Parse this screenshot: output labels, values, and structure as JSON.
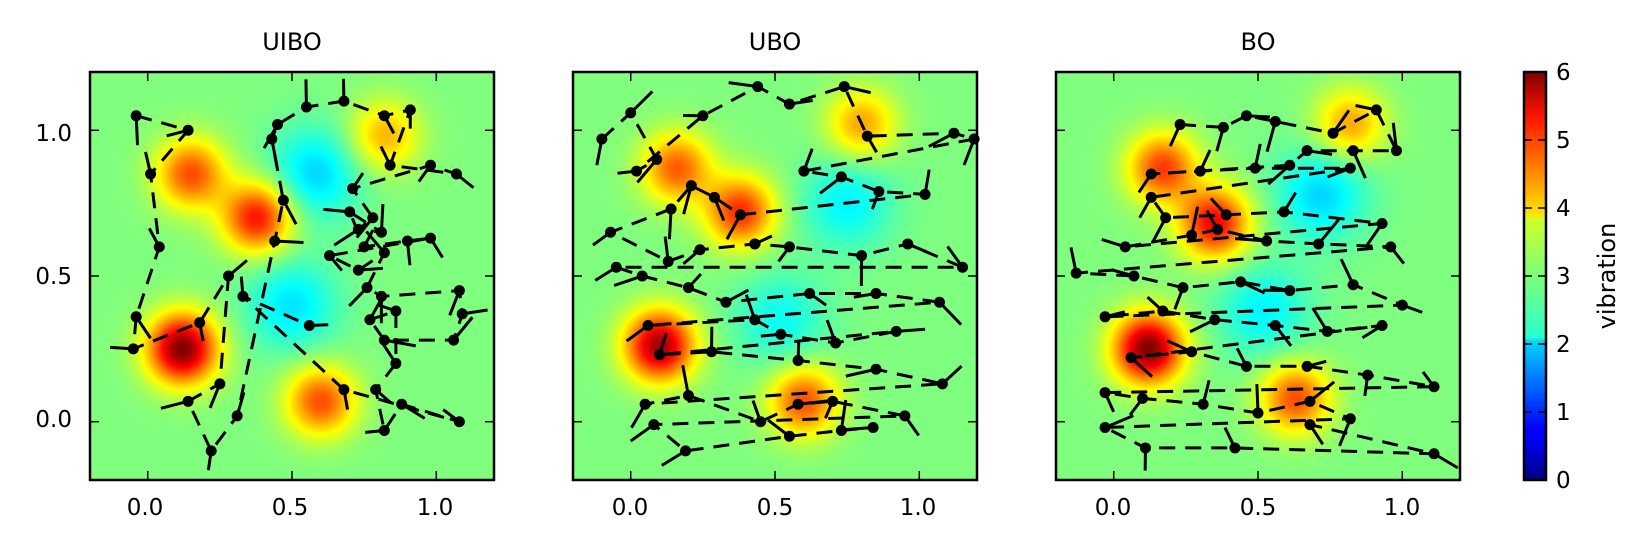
{
  "chart_data": [
    {
      "type": "heatmap",
      "title": "UIBO",
      "xlim": [
        -0.2,
        1.2
      ],
      "ylim": [
        -0.2,
        1.2
      ],
      "xticks": [
        "0.0",
        "0.5",
        "1.0"
      ],
      "yticks": [
        "0.0",
        "0.5",
        "1.0"
      ],
      "background_field": "vibration",
      "peaks": [
        {
          "x": 0.12,
          "y": 0.25,
          "value": 6.0
        },
        {
          "x": 0.38,
          "y": 0.7,
          "value": 5.2
        },
        {
          "x": 0.15,
          "y": 0.85,
          "value": 4.8
        },
        {
          "x": 0.6,
          "y": 0.07,
          "value": 4.8
        },
        {
          "x": 0.82,
          "y": 0.98,
          "value": 4.2
        }
      ],
      "troughs": [
        {
          "x": 0.58,
          "y": 0.85,
          "value": 2.0
        },
        {
          "x": 0.5,
          "y": 0.4,
          "value": 2.1
        }
      ],
      "sample_points": [
        [
          -0.04,
          1.05
        ],
        [
          0.14,
          1.0
        ],
        [
          0.01,
          0.85
        ],
        [
          0.04,
          0.6
        ],
        [
          -0.04,
          0.36
        ],
        [
          -0.05,
          0.25
        ],
        [
          0.18,
          0.34
        ],
        [
          0.28,
          0.5
        ],
        [
          0.25,
          0.13
        ],
        [
          0.14,
          0.07
        ],
        [
          0.22,
          -0.1
        ],
        [
          0.31,
          0.02
        ],
        [
          0.44,
          0.62
        ],
        [
          0.47,
          0.76
        ],
        [
          0.43,
          0.97
        ],
        [
          0.45,
          1.02
        ],
        [
          0.55,
          1.08
        ],
        [
          0.68,
          1.1
        ],
        [
          0.82,
          1.05
        ],
        [
          0.91,
          1.07
        ],
        [
          0.84,
          0.88
        ],
        [
          1.07,
          0.85
        ],
        [
          0.98,
          0.88
        ],
        [
          0.71,
          0.8
        ],
        [
          0.78,
          0.7
        ],
        [
          0.73,
          0.66
        ],
        [
          0.81,
          0.65
        ],
        [
          0.7,
          0.72
        ],
        [
          0.75,
          0.6
        ],
        [
          0.9,
          0.62
        ],
        [
          0.98,
          0.63
        ],
        [
          0.63,
          0.57
        ],
        [
          0.73,
          0.52
        ],
        [
          0.82,
          0.58
        ],
        [
          0.76,
          0.46
        ],
        [
          0.81,
          0.43
        ],
        [
          1.08,
          0.45
        ],
        [
          1.09,
          0.37
        ],
        [
          1.06,
          0.28
        ],
        [
          0.82,
          0.28
        ],
        [
          0.77,
          0.35
        ],
        [
          0.86,
          0.38
        ],
        [
          0.86,
          0.2
        ],
        [
          0.79,
          0.11
        ],
        [
          0.82,
          -0.03
        ],
        [
          0.88,
          0.06
        ],
        [
          1.08,
          0.0
        ],
        [
          0.68,
          0.11
        ],
        [
          0.33,
          0.43
        ],
        [
          0.56,
          0.33
        ]
      ]
    },
    {
      "type": "heatmap",
      "title": "UBO",
      "xlim": [
        -0.2,
        1.2
      ],
      "ylim": [
        -0.2,
        1.2
      ],
      "xticks": [
        "0.0",
        "0.5",
        "1.0"
      ],
      "yticks": [],
      "background_field": "vibration",
      "peaks": [
        {
          "x": 0.1,
          "y": 0.26,
          "value": 5.8
        },
        {
          "x": 0.38,
          "y": 0.72,
          "value": 5.0
        },
        {
          "x": 0.16,
          "y": 0.87,
          "value": 4.7
        },
        {
          "x": 0.6,
          "y": 0.07,
          "value": 4.8
        },
        {
          "x": 0.8,
          "y": 1.02,
          "value": 4.3
        }
      ],
      "troughs": [
        {
          "x": 0.75,
          "y": 0.75,
          "value": 2.2
        },
        {
          "x": 0.52,
          "y": 0.35,
          "value": 2.3
        }
      ],
      "sample_points": [
        [
          -0.1,
          0.97
        ],
        [
          0.0,
          1.06
        ],
        [
          0.09,
          0.9
        ],
        [
          0.02,
          0.86
        ],
        [
          0.25,
          1.05
        ],
        [
          0.44,
          1.15
        ],
        [
          0.55,
          1.09
        ],
        [
          0.74,
          1.15
        ],
        [
          0.82,
          0.98
        ],
        [
          1.12,
          0.99
        ],
        [
          1.19,
          0.97
        ],
        [
          0.6,
          0.86
        ],
        [
          0.73,
          0.84
        ],
        [
          0.86,
          0.79
        ],
        [
          1.02,
          0.78
        ],
        [
          0.38,
          0.71
        ],
        [
          0.29,
          0.77
        ],
        [
          0.21,
          0.81
        ],
        [
          0.14,
          0.73
        ],
        [
          -0.07,
          0.65
        ],
        [
          0.13,
          0.55
        ],
        [
          0.24,
          0.59
        ],
        [
          0.43,
          0.61
        ],
        [
          0.55,
          0.6
        ],
        [
          0.8,
          0.57
        ],
        [
          0.96,
          0.61
        ],
        [
          1.15,
          0.53
        ],
        [
          -0.05,
          0.53
        ],
        [
          0.04,
          0.5
        ],
        [
          0.2,
          0.46
        ],
        [
          0.33,
          0.41
        ],
        [
          0.62,
          0.44
        ],
        [
          0.85,
          0.44
        ],
        [
          1.07,
          0.41
        ],
        [
          0.06,
          0.33
        ],
        [
          0.43,
          0.35
        ],
        [
          0.52,
          0.3
        ],
        [
          0.71,
          0.27
        ],
        [
          0.92,
          0.31
        ],
        [
          0.1,
          0.23
        ],
        [
          0.28,
          0.24
        ],
        [
          0.58,
          0.21
        ],
        [
          0.85,
          0.18
        ],
        [
          1.08,
          0.13
        ],
        [
          0.05,
          0.06
        ],
        [
          0.2,
          0.09
        ],
        [
          0.45,
          0.0
        ],
        [
          0.58,
          0.06
        ],
        [
          0.7,
          0.07
        ],
        [
          0.95,
          0.02
        ],
        [
          0.08,
          -0.01
        ],
        [
          0.19,
          -0.1
        ],
        [
          0.55,
          -0.05
        ],
        [
          0.73,
          -0.03
        ],
        [
          0.84,
          -0.02
        ]
      ]
    },
    {
      "type": "heatmap",
      "title": "BO",
      "xlim": [
        -0.2,
        1.2
      ],
      "ylim": [
        -0.2,
        1.2
      ],
      "xticks": [
        "0.0",
        "0.5",
        "1.0"
      ],
      "yticks": [],
      "background_field": "vibration",
      "peaks": [
        {
          "x": 0.12,
          "y": 0.25,
          "value": 6.0
        },
        {
          "x": 0.35,
          "y": 0.68,
          "value": 5.3
        },
        {
          "x": 0.17,
          "y": 0.87,
          "value": 4.9
        },
        {
          "x": 0.63,
          "y": 0.08,
          "value": 4.8
        },
        {
          "x": 0.82,
          "y": 1.02,
          "value": 4.3
        }
      ],
      "troughs": [
        {
          "x": 0.72,
          "y": 0.78,
          "value": 2.0
        },
        {
          "x": 0.52,
          "y": 0.38,
          "value": 2.2
        }
      ],
      "sample_points": [
        [
          0.23,
          1.02
        ],
        [
          0.38,
          1.01
        ],
        [
          0.46,
          1.05
        ],
        [
          0.56,
          1.03
        ],
        [
          0.76,
          0.99
        ],
        [
          0.91,
          1.07
        ],
        [
          0.98,
          0.93
        ],
        [
          0.83,
          0.93
        ],
        [
          0.67,
          0.93
        ],
        [
          0.61,
          0.88
        ],
        [
          0.13,
          0.85
        ],
        [
          0.3,
          0.86
        ],
        [
          0.49,
          0.87
        ],
        [
          0.82,
          0.87
        ],
        [
          0.13,
          0.77
        ],
        [
          0.18,
          0.7
        ],
        [
          0.39,
          0.71
        ],
        [
          0.59,
          0.72
        ],
        [
          0.93,
          0.68
        ],
        [
          0.04,
          0.6
        ],
        [
          0.27,
          0.64
        ],
        [
          0.36,
          0.66
        ],
        [
          0.53,
          0.62
        ],
        [
          0.71,
          0.61
        ],
        [
          0.96,
          0.6
        ],
        [
          -0.13,
          0.51
        ],
        [
          0.07,
          0.5
        ],
        [
          0.24,
          0.46
        ],
        [
          0.44,
          0.48
        ],
        [
          0.61,
          0.45
        ],
        [
          0.83,
          0.47
        ],
        [
          1.0,
          0.4
        ],
        [
          -0.03,
          0.36
        ],
        [
          0.17,
          0.38
        ],
        [
          0.35,
          0.35
        ],
        [
          0.56,
          0.33
        ],
        [
          0.74,
          0.31
        ],
        [
          0.93,
          0.33
        ],
        [
          0.06,
          0.22
        ],
        [
          0.27,
          0.24
        ],
        [
          0.46,
          0.19
        ],
        [
          0.67,
          0.19
        ],
        [
          0.88,
          0.16
        ],
        [
          1.11,
          0.12
        ],
        [
          -0.03,
          0.1
        ],
        [
          0.1,
          0.08
        ],
        [
          0.31,
          0.06
        ],
        [
          0.5,
          0.03
        ],
        [
          0.68,
          0.07
        ],
        [
          0.82,
          0.01
        ],
        [
          -0.03,
          -0.02
        ],
        [
          0.11,
          -0.09
        ],
        [
          0.42,
          -0.09
        ],
        [
          1.11,
          -0.11
        ],
        [
          0.68,
          -0.01
        ]
      ]
    }
  ],
  "colorbar": {
    "label": "vibration",
    "min": 0,
    "max": 6,
    "ticks": [
      "0",
      "1",
      "2",
      "3",
      "4",
      "5",
      "6"
    ],
    "colormap": "jet"
  }
}
